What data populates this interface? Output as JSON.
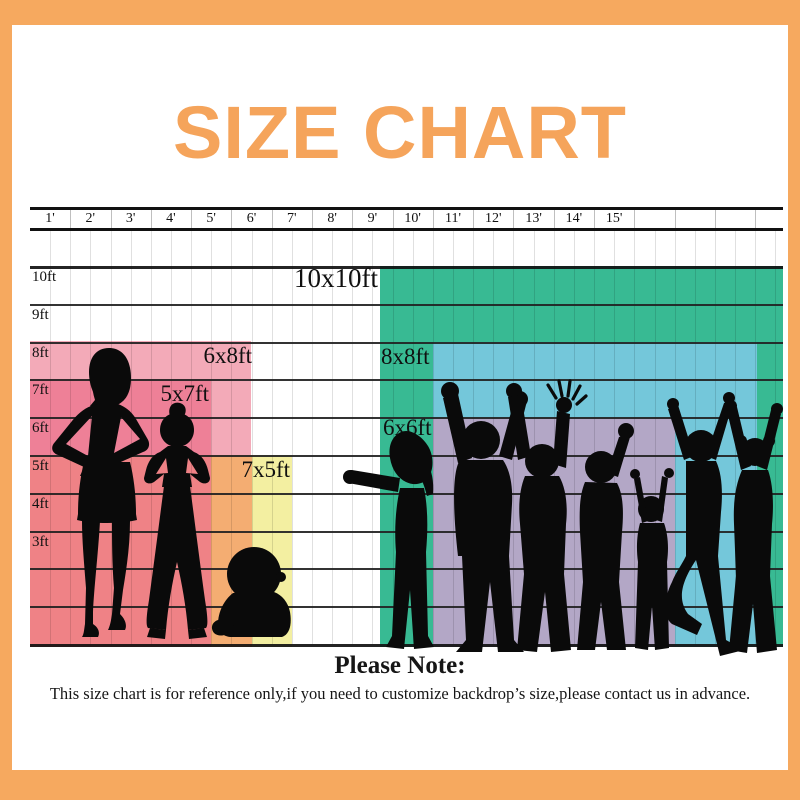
{
  "title": "SIZE CHART",
  "colors": {
    "frame": "#f6a95f",
    "title": "#f5a45b",
    "size_10x10": "#38ba93",
    "size_8x8": "#74c7da",
    "size_6x6": "#b3a7c6",
    "size_6x8": "#f3aab8",
    "size_5x7": "#ee8097",
    "size_7x5": "#f3efa1",
    "overlap_5x7_and_7x5": "#ef8286",
    "overlap_6x8_and_7x5": "#f4ad72",
    "silhouette": "#0a0a0a"
  },
  "ruler": {
    "labels": [
      "1'",
      "2'",
      "3'",
      "4'",
      "5'",
      "6'",
      "7'",
      "8'",
      "9'",
      "10'",
      "11'",
      "12'",
      "13'",
      "14'",
      "15'"
    ]
  },
  "axis": {
    "labels": [
      "10ft",
      "9ft",
      "8ft",
      "7ft",
      "6ft",
      "5ft",
      "4ft",
      "3ft"
    ]
  },
  "sizes": [
    {
      "label": "10x10ft",
      "width_ft": 10,
      "height_ft": 10
    },
    {
      "label": "8x8ft",
      "width_ft": 8,
      "height_ft": 8
    },
    {
      "label": "6x6ft",
      "width_ft": 6,
      "height_ft": 6
    },
    {
      "label": "6x8ft",
      "width_ft": 6,
      "height_ft": 8
    },
    {
      "label": "5x7ft",
      "width_ft": 5,
      "height_ft": 7
    },
    {
      "label": "7x5ft",
      "width_ft": 7,
      "height_ft": 5
    }
  ],
  "note": {
    "heading": "Please Note:",
    "body": "This size chart is for reference only,if you need to customize backdrop’s size,please contact us in advance."
  }
}
